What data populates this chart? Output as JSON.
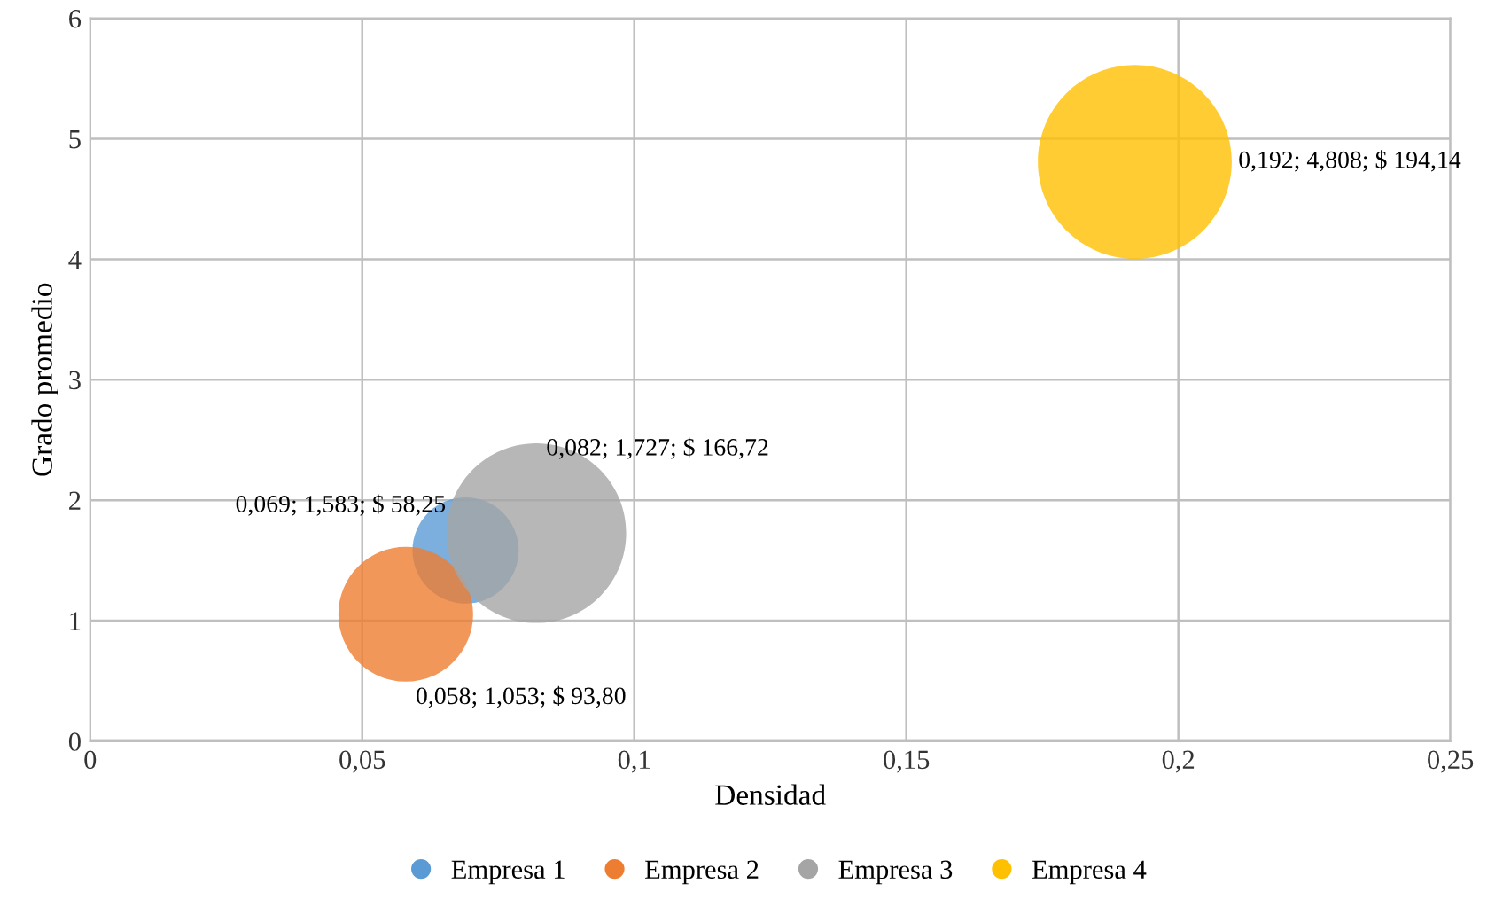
{
  "chart_data": {
    "type": "bubble",
    "xlabel": "Densidad",
    "ylabel": "Grado promedio",
    "xlim": [
      0,
      0.25
    ],
    "xticks": [
      0,
      {
        "value": 0.05,
        "label": "0,05"
      },
      {
        "value": 0.1,
        "label": "0,1"
      },
      {
        "value": 0.15,
        "label": "0,15"
      },
      {
        "value": 0.2,
        "label": "0,2"
      },
      {
        "value": 0.25,
        "label": "0,25"
      }
    ],
    "ylim": [
      0,
      6
    ],
    "yticks": [
      0,
      1,
      2,
      3,
      4,
      5,
      6
    ],
    "grid": true,
    "legend": "bottom",
    "series": [
      {
        "name": "Empresa 1",
        "color": "#5b9bd5",
        "x": [
          0.069
        ],
        "values": [
          1.583
        ],
        "sizes": [
          0.3
        ],
        "value_labels": [
          "0,069; 1,583; $ 58,25"
        ]
      },
      {
        "name": "Empresa 2",
        "color": "#ed7d31",
        "x": [
          0.058
        ],
        "values": [
          1.053
        ],
        "sizes": [
          0.483
        ],
        "value_labels": [
          "0,058; 1,053; $ 93,80"
        ]
      },
      {
        "name": "Empresa 3",
        "color": "#a5a5a5",
        "x": [
          0.082
        ],
        "values": [
          1.727
        ],
        "sizes": [
          0.859
        ],
        "value_labels": [
          "0,082; 1,727; $ 166,72"
        ]
      },
      {
        "name": "Empresa 4",
        "color": "#ffc000",
        "x": [
          0.192
        ],
        "values": [
          4.808
        ],
        "sizes": [
          1
        ],
        "value_labels": [
          "0,192; 4,808; $ 194,14"
        ]
      }
    ]
  }
}
